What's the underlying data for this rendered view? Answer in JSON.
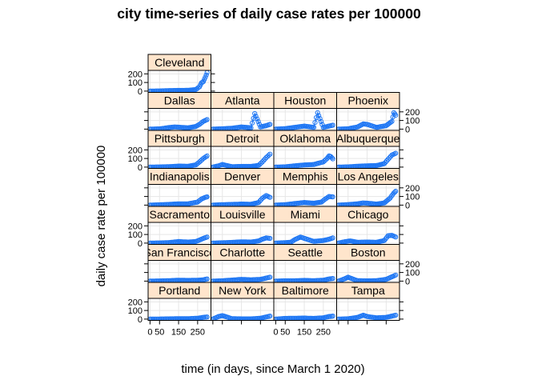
{
  "chart_data": {
    "type": "scatter",
    "title": "city time-series of daily case rates per 100000",
    "xlabel": "time (in days, since March 1 2020)",
    "ylabel": "daily case rate per 100000",
    "xlim": [
      -10,
      320
    ],
    "ylim": [
      -15,
      240
    ],
    "x_ticks": [
      0,
      50,
      150,
      250
    ],
    "x_tick_labels": [
      "0",
      "50",
      "150",
      "250"
    ],
    "y_ticks": [
      0,
      100,
      200
    ],
    "y_tick_labels": [
      "0",
      "100",
      "200"
    ],
    "grid": true,
    "point_color": "#1f77f4",
    "strip_color": "#ffe5cc",
    "layout_rows": [
      [
        "Cleveland"
      ],
      [
        "Dallas",
        "Atlanta",
        "Houston",
        "Phoenix"
      ],
      [
        "Pittsburgh",
        "Detroit",
        "Oklahoma",
        "Albuquerque"
      ],
      [
        "Indianapolis",
        "Denver",
        "Memphis",
        "Los Angeles"
      ],
      [
        "Sacramento",
        "Louisville",
        "Miami",
        "Chicago"
      ],
      [
        "San Francisco",
        "Charlotte",
        "Seattle",
        "Boston"
      ],
      [
        "Portland",
        "New York",
        "Baltimore",
        "Tampa"
      ]
    ],
    "panels": [
      {
        "name": "Cleveland",
        "x": [
          0,
          50,
          100,
          150,
          200,
          240,
          260,
          270,
          280,
          290,
          300
        ],
        "y": [
          0,
          2,
          6,
          8,
          9,
          18,
          50,
          95,
          110,
          160,
          215
        ]
      },
      {
        "name": "Dallas",
        "x": [
          0,
          50,
          100,
          130,
          150,
          200,
          240,
          260,
          280,
          300
        ],
        "y": [
          0,
          3,
          18,
          25,
          22,
          15,
          30,
          55,
          90,
          110
        ]
      },
      {
        "name": "Atlanta",
        "x": [
          0,
          50,
          100,
          150,
          200,
          220,
          250,
          280,
          300
        ],
        "y": [
          0,
          4,
          10,
          25,
          15,
          180,
          25,
          40,
          55
        ]
      },
      {
        "name": "Houston",
        "x": [
          0,
          50,
          100,
          150,
          200,
          220,
          250,
          280,
          300
        ],
        "y": [
          0,
          5,
          20,
          35,
          20,
          190,
          20,
          35,
          45
        ]
      },
      {
        "name": "Phoenix",
        "x": [
          0,
          50,
          100,
          130,
          150,
          200,
          250,
          280,
          290,
          300
        ],
        "y": [
          0,
          4,
          25,
          60,
          55,
          20,
          40,
          90,
          190,
          160
        ]
      },
      {
        "name": "Pittsburgh",
        "x": [
          0,
          50,
          100,
          150,
          200,
          240,
          260,
          280,
          300
        ],
        "y": [
          0,
          2,
          5,
          12,
          10,
          25,
          60,
          100,
          130
        ]
      },
      {
        "name": "Detroit",
        "x": [
          0,
          30,
          50,
          100,
          150,
          200,
          240,
          260,
          280,
          300
        ],
        "y": [
          0,
          15,
          30,
          5,
          8,
          8,
          20,
          60,
          110,
          150
        ]
      },
      {
        "name": "Oklahoma",
        "x": [
          0,
          50,
          100,
          150,
          200,
          250,
          270,
          280,
          290,
          300
        ],
        "y": [
          0,
          3,
          15,
          25,
          30,
          60,
          100,
          130,
          120,
          95
        ]
      },
      {
        "name": "Albuquerque",
        "x": [
          0,
          50,
          100,
          150,
          200,
          240,
          260,
          280,
          300
        ],
        "y": [
          0,
          3,
          10,
          15,
          18,
          40,
          90,
          140,
          160
        ]
      },
      {
        "name": "Indianapolis",
        "x": [
          0,
          50,
          100,
          150,
          200,
          250,
          270,
          290,
          300
        ],
        "y": [
          0,
          4,
          8,
          15,
          15,
          35,
          70,
          90,
          95
        ]
      },
      {
        "name": "Denver",
        "x": [
          0,
          50,
          100,
          150,
          200,
          240,
          260,
          280,
          300
        ],
        "y": [
          0,
          5,
          8,
          12,
          10,
          30,
          80,
          110,
          90
        ]
      },
      {
        "name": "Memphis",
        "x": [
          0,
          50,
          100,
          150,
          200,
          240,
          260,
          280,
          300
        ],
        "y": [
          0,
          5,
          18,
          30,
          22,
          35,
          70,
          100,
          95
        ]
      },
      {
        "name": "Los Angeles",
        "x": [
          0,
          50,
          100,
          130,
          150,
          200,
          240,
          270,
          290,
          300
        ],
        "y": [
          0,
          6,
          15,
          25,
          22,
          12,
          25,
          80,
          140,
          160
        ]
      },
      {
        "name": "Sacramento",
        "x": [
          0,
          50,
          100,
          150,
          200,
          240,
          260,
          280,
          300
        ],
        "y": [
          0,
          2,
          6,
          18,
          12,
          18,
          35,
          55,
          70
        ]
      },
      {
        "name": "Louisville",
        "x": [
          0,
          50,
          100,
          150,
          200,
          240,
          260,
          280,
          300
        ],
        "y": [
          0,
          4,
          8,
          15,
          12,
          25,
          45,
          60,
          55
        ]
      },
      {
        "name": "Miami",
        "x": [
          0,
          50,
          80,
          100,
          130,
          150,
          200,
          250,
          280,
          300
        ],
        "y": [
          0,
          5,
          10,
          40,
          70,
          55,
          20,
          30,
          45,
          60
        ]
      },
      {
        "name": "Chicago",
        "x": [
          0,
          30,
          60,
          100,
          150,
          200,
          240,
          260,
          280,
          300
        ],
        "y": [
          0,
          15,
          25,
          10,
          12,
          10,
          30,
          85,
          90,
          70
        ]
      },
      {
        "name": "San Francisco",
        "x": [
          0,
          50,
          100,
          150,
          200,
          250,
          280,
          300
        ],
        "y": [
          0,
          2,
          5,
          10,
          8,
          10,
          15,
          25
        ]
      },
      {
        "name": "Charlotte",
        "x": [
          0,
          50,
          100,
          150,
          200,
          250,
          280,
          300
        ],
        "y": [
          0,
          4,
          12,
          20,
          15,
          20,
          35,
          45
        ]
      },
      {
        "name": "Seattle",
        "x": [
          0,
          50,
          100,
          150,
          200,
          250,
          280,
          300
        ],
        "y": [
          0,
          4,
          4,
          8,
          5,
          10,
          25,
          30
        ]
      },
      {
        "name": "Boston",
        "x": [
          0,
          30,
          50,
          80,
          100,
          150,
          200,
          250,
          280,
          300
        ],
        "y": [
          0,
          25,
          45,
          20,
          5,
          3,
          5,
          20,
          50,
          70
        ]
      },
      {
        "name": "Portland",
        "x": [
          0,
          50,
          100,
          150,
          200,
          250,
          280,
          300
        ],
        "y": [
          0,
          1,
          3,
          5,
          5,
          10,
          20,
          25
        ]
      },
      {
        "name": "New York",
        "x": [
          0,
          30,
          50,
          80,
          100,
          150,
          200,
          250,
          280,
          300
        ],
        "y": [
          0,
          30,
          40,
          20,
          5,
          3,
          3,
          10,
          25,
          35
        ]
      },
      {
        "name": "Baltimore",
        "x": [
          0,
          50,
          100,
          150,
          200,
          250,
          280,
          300
        ],
        "y": [
          0,
          8,
          10,
          12,
          8,
          15,
          30,
          35
        ]
      },
      {
        "name": "Tampa",
        "x": [
          0,
          50,
          100,
          130,
          150,
          200,
          250,
          280,
          300
        ],
        "y": [
          0,
          4,
          20,
          45,
          30,
          15,
          20,
          35,
          45
        ]
      }
    ]
  }
}
